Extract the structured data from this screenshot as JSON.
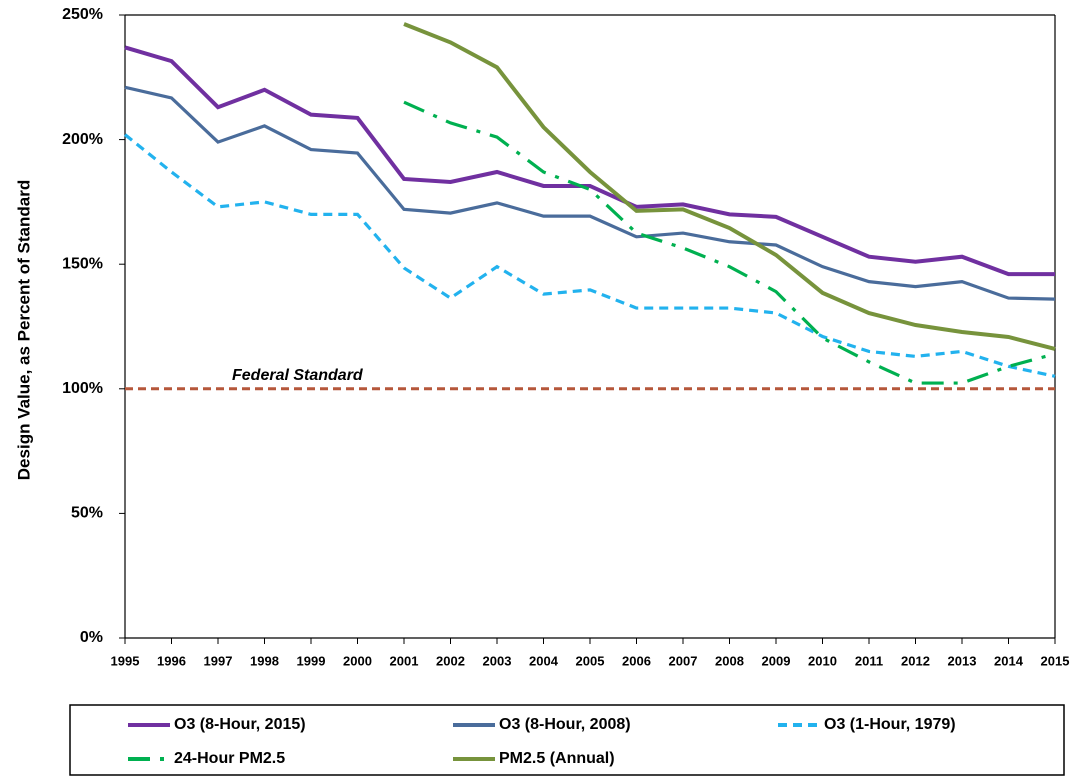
{
  "chart_data": {
    "type": "line",
    "y_label": "Design Value, as Percent of Standard",
    "categories": [
      "1995",
      "1996",
      "1997",
      "1998",
      "1999",
      "2000",
      "2001",
      "2002",
      "2003",
      "2004",
      "2005",
      "2006",
      "2007",
      "2008",
      "2009",
      "2010",
      "2011",
      "2012",
      "2013",
      "2014",
      "2015"
    ],
    "ylim": [
      0,
      250
    ],
    "yticks": [
      {
        "value": 0,
        "label": "0%"
      },
      {
        "value": 50,
        "label": "50%"
      },
      {
        "value": 100,
        "label": "100%"
      },
      {
        "value": 150,
        "label": "150%"
      },
      {
        "value": 200,
        "label": "200%"
      },
      {
        "value": 250,
        "label": "250%"
      }
    ],
    "reference_line": {
      "value": 100,
      "label": "Federal Standard",
      "color": "#b5573a"
    },
    "series": [
      {
        "name": "O3 (8-Hour, 2015)",
        "color": "#7030a0",
        "style": "solid",
        "values": [
          237,
          231.5,
          213,
          220,
          210,
          208.7,
          184.2,
          183,
          187,
          181.4,
          181.4,
          173,
          174,
          170,
          169,
          161,
          153,
          151,
          153,
          146,
          146
        ]
      },
      {
        "name": "O3 (8-Hour, 2008)",
        "color": "#4a6c9b",
        "style": "solid",
        "values": [
          221,
          216.7,
          199,
          205.5,
          196,
          194.6,
          172,
          170.5,
          174.6,
          169.3,
          169.3,
          161,
          162.5,
          159,
          157.7,
          149,
          143,
          141,
          143,
          136.4,
          136
        ]
      },
      {
        "name": "O3 (1-Hour, 1979)",
        "color": "#22b2ee",
        "style": "dashed",
        "values": [
          202,
          187,
          173,
          175,
          170,
          170,
          148.5,
          136.4,
          149,
          138,
          139.7,
          132.4,
          132.4,
          132.4,
          130.4,
          121,
          115,
          113,
          115,
          109,
          105
        ]
      },
      {
        "name": "24-Hour PM2.5",
        "color": "#00b050",
        "style": "dash-dot",
        "values": [
          null,
          null,
          null,
          null,
          null,
          null,
          215,
          206.7,
          201,
          187,
          180,
          162.5,
          156.5,
          149,
          139,
          120.4,
          110.8,
          102.3,
          102.3,
          109,
          114
        ]
      },
      {
        "name": "PM2.5 (Annual)",
        "color": "#77933c",
        "style": "solid",
        "values": [
          null,
          null,
          null,
          null,
          null,
          null,
          246.4,
          239,
          229,
          205,
          187,
          171.4,
          172,
          164.5,
          153.7,
          138.5,
          130.4,
          125.6,
          122.8,
          120.8,
          116
        ]
      }
    ]
  }
}
